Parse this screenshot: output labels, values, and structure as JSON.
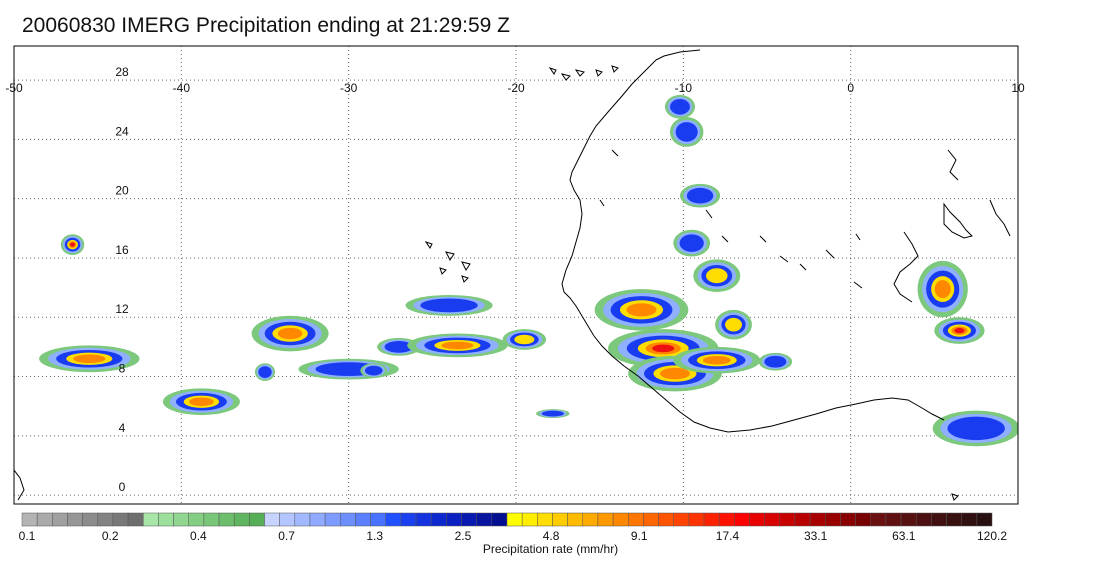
{
  "title": "20060830 IMERG Precipitation ending at 21:29:59 Z",
  "map": {
    "lon_range": [
      -50,
      10
    ],
    "lat_range": [
      -0.6,
      30.3
    ],
    "lon_ticks": [
      "-50",
      "-40",
      "-30",
      "-20",
      "-10",
      "0",
      "10"
    ],
    "lat_ticks": [
      "28",
      "24",
      "20",
      "16",
      "12",
      "8",
      "4",
      "0"
    ],
    "grid": "dotted",
    "land_outline": "Northwest Africa coast (Western Sahara to Gulf of Guinea) and Cape Verde islands"
  },
  "colorbar": {
    "caption": "Precipitation rate (mm/hr)",
    "tick_labels": [
      "0.1",
      "0.2",
      "0.4",
      "0.7",
      "1.3",
      "2.5",
      "4.8",
      "9.1",
      "17.4",
      "33.1",
      "63.1",
      "120.2"
    ],
    "colors": [
      "#b4b4b4",
      "#aaaaaa",
      "#a0a0a0",
      "#969696",
      "#8c8c8c",
      "#828282",
      "#787878",
      "#6e6e6e",
      "#a8e6a8",
      "#9cde9c",
      "#90d690",
      "#84ce84",
      "#78c678",
      "#6cbe6c",
      "#60b660",
      "#56ae56",
      "#c6d4ff",
      "#b4c6ff",
      "#a2b8ff",
      "#90aaff",
      "#7e9cff",
      "#6c8eff",
      "#5a80ff",
      "#4872ff",
      "#2050ff",
      "#1a40f0",
      "#1432e0",
      "#0e28d0",
      "#0a20c0",
      "#081ab0",
      "#0614a0",
      "#040e90",
      "#ffff00",
      "#ffee00",
      "#ffdd00",
      "#ffcc00",
      "#ffbb00",
      "#ffaa00",
      "#ff9900",
      "#ff8800",
      "#ff7700",
      "#ff6600",
      "#ff5500",
      "#ff4400",
      "#ff3300",
      "#ff2200",
      "#ff1100",
      "#ff0000",
      "#e80000",
      "#d80000",
      "#c80000",
      "#b80000",
      "#a80000",
      "#980000",
      "#880000",
      "#780000",
      "#6a1010",
      "#601010",
      "#561010",
      "#4c1010",
      "#421010",
      "#381010",
      "#301010",
      "#281010"
    ]
  },
  "rain_cells": [
    {
      "lon": -45.5,
      "lat": 9.2,
      "rx": 3.0,
      "ry": 0.9,
      "peak": 3
    },
    {
      "lon": -38.8,
      "lat": 6.3,
      "rx": 2.3,
      "ry": 0.9,
      "peak": 3
    },
    {
      "lon": -46.5,
      "lat": 16.9,
      "rx": 0.7,
      "ry": 0.7,
      "peak": 4
    },
    {
      "lon": -33.5,
      "lat": 10.9,
      "rx": 2.3,
      "ry": 1.2,
      "peak": 3
    },
    {
      "lon": -30.0,
      "lat": 8.5,
      "rx": 3.0,
      "ry": 0.7,
      "peak": 1
    },
    {
      "lon": -27.0,
      "lat": 10.0,
      "rx": 1.3,
      "ry": 0.6,
      "peak": 1
    },
    {
      "lon": -23.5,
      "lat": 10.1,
      "rx": 3.0,
      "ry": 0.8,
      "peak": 3
    },
    {
      "lon": -24.0,
      "lat": 12.8,
      "rx": 2.6,
      "ry": 0.7,
      "peak": 1
    },
    {
      "lon": -19.5,
      "lat": 10.5,
      "rx": 1.3,
      "ry": 0.7,
      "peak": 2
    },
    {
      "lon": -17.8,
      "lat": 5.5,
      "rx": 1.0,
      "ry": 0.3,
      "peak": 1
    },
    {
      "lon": -12.5,
      "lat": 12.5,
      "rx": 2.8,
      "ry": 1.4,
      "peak": 3
    },
    {
      "lon": -11.2,
      "lat": 9.9,
      "rx": 3.3,
      "ry": 1.3,
      "peak": 4
    },
    {
      "lon": -10.5,
      "lat": 8.2,
      "rx": 2.8,
      "ry": 1.2,
      "peak": 3
    },
    {
      "lon": -8.0,
      "lat": 9.1,
      "rx": 2.6,
      "ry": 0.9,
      "peak": 3
    },
    {
      "lon": -9.8,
      "lat": 24.5,
      "rx": 1.0,
      "ry": 1.0,
      "peak": 1
    },
    {
      "lon": -9.0,
      "lat": 20.2,
      "rx": 1.2,
      "ry": 0.8,
      "peak": 1
    },
    {
      "lon": -9.5,
      "lat": 17.0,
      "rx": 1.1,
      "ry": 0.9,
      "peak": 1
    },
    {
      "lon": -8.0,
      "lat": 14.8,
      "rx": 1.4,
      "ry": 1.1,
      "peak": 2
    },
    {
      "lon": -7.0,
      "lat": 11.5,
      "rx": 1.1,
      "ry": 1.0,
      "peak": 2
    },
    {
      "lon": -4.5,
      "lat": 9.0,
      "rx": 1.0,
      "ry": 0.6,
      "peak": 1
    },
    {
      "lon": 5.5,
      "lat": 13.9,
      "rx": 1.5,
      "ry": 1.9,
      "peak": 3
    },
    {
      "lon": 6.5,
      "lat": 11.1,
      "rx": 1.5,
      "ry": 0.9,
      "peak": 4
    },
    {
      "lon": 7.5,
      "lat": 4.5,
      "rx": 2.6,
      "ry": 1.2,
      "peak": 1
    },
    {
      "lon": -10.2,
      "lat": 26.2,
      "rx": 0.9,
      "ry": 0.8,
      "peak": 1
    },
    {
      "lon": -35.0,
      "lat": 8.3,
      "rx": 0.6,
      "ry": 0.6,
      "peak": 1
    },
    {
      "lon": -28.5,
      "lat": 8.4,
      "rx": 0.8,
      "ry": 0.5,
      "peak": 1
    }
  ]
}
